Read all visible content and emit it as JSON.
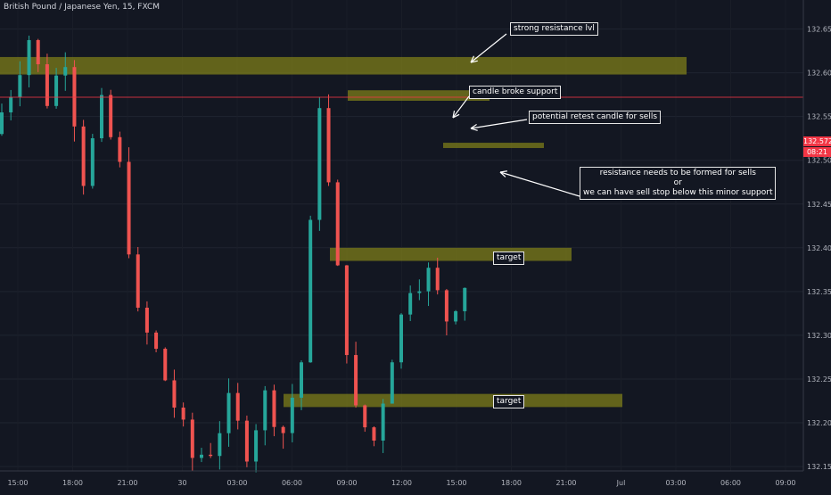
{
  "header": {
    "symbol": "British Pound / Japanese Yen, 15, FXCM"
  },
  "colors": {
    "background": "#131722",
    "bull": "#26a69a",
    "bear": "#ef5350",
    "zone": "#7d7d19",
    "price_line": "#f23645",
    "axis_text": "#b2b5be",
    "note_border": "#e6e6e6"
  },
  "annotations": {
    "strong_resistance": "strong resistance lvl",
    "candle_broke": "candle broke support",
    "potential_retest": "potential retest candle for sells",
    "resistance_line1": "resistance needs to be formed for sells",
    "resistance_line2": "or",
    "resistance_line3": "we can have sell stop below this minor support",
    "target_upper": "target",
    "target_lower": "target"
  },
  "last_price": {
    "value": "132.572",
    "countdown": "08:21"
  },
  "chart_data": {
    "type": "candlestick",
    "title": "British Pound / Japanese Yen, 15, FXCM",
    "y_ticks": [
      "132.650",
      "132.600",
      "132.550",
      "132.500",
      "132.450",
      "132.400",
      "132.350",
      "132.300",
      "132.250",
      "132.200",
      "132.150"
    ],
    "x_ticks": [
      "15:00",
      "18:00",
      "21:00",
      "30",
      "03:00",
      "06:00",
      "09:00",
      "12:00",
      "15:00",
      "18:00",
      "21:00",
      "Jul",
      "03:00",
      "06:00",
      "09:00"
    ],
    "ylim": [
      132.145,
      132.675
    ],
    "last_price": 132.572,
    "zones": [
      {
        "name": "strong resistance",
        "low": 132.598,
        "high": 132.618
      },
      {
        "name": "retest zone",
        "low": 132.568,
        "high": 132.58
      },
      {
        "name": "minor support",
        "low": 132.514,
        "high": 132.52
      },
      {
        "name": "upper target",
        "low": 132.385,
        "high": 132.4
      },
      {
        "name": "lower target",
        "low": 132.218,
        "high": 132.233
      }
    ],
    "waypoints": [
      [
        0,
        132.53
      ],
      [
        2,
        132.58
      ],
      [
        4,
        132.64
      ],
      [
        6,
        132.57
      ],
      [
        8,
        132.62
      ],
      [
        10,
        132.48
      ],
      [
        12,
        132.56
      ],
      [
        14,
        132.49
      ],
      [
        16,
        132.32
      ],
      [
        18,
        132.28
      ],
      [
        20,
        132.22
      ],
      [
        22,
        132.16
      ],
      [
        24,
        132.17
      ],
      [
        26,
        132.22
      ],
      [
        28,
        132.17
      ],
      [
        30,
        132.23
      ],
      [
        32,
        132.19
      ],
      [
        34,
        132.27
      ],
      [
        36,
        132.57
      ],
      [
        38,
        132.37
      ],
      [
        40,
        132.21
      ],
      [
        42,
        132.18
      ],
      [
        44,
        132.28
      ],
      [
        46,
        132.36
      ],
      [
        48,
        132.37
      ],
      [
        50,
        132.32
      ],
      [
        52,
        132.36
      ],
      [
        54,
        132.32
      ],
      [
        56,
        132.24
      ],
      [
        58,
        132.27
      ],
      [
        60,
        132.29
      ],
      [
        62,
        132.27
      ],
      [
        64,
        132.3
      ],
      [
        66,
        132.42
      ],
      [
        68,
        132.48
      ],
      [
        70,
        132.52
      ],
      [
        72,
        132.49
      ],
      [
        74,
        132.56
      ],
      [
        76,
        132.58
      ],
      [
        78,
        132.6
      ],
      [
        80,
        132.57
      ],
      [
        82,
        132.61
      ],
      [
        84,
        132.54
      ],
      [
        86,
        132.57
      ],
      [
        88,
        132.52
      ],
      [
        90,
        132.565
      ]
    ]
  }
}
